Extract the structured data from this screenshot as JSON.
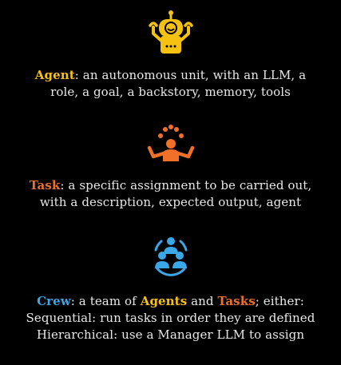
{
  "colors": {
    "agent": "#f5c211",
    "task": "#f0702a",
    "crew": "#3aa8e8",
    "text": "#e8e8e8",
    "background": "#000000"
  },
  "agent": {
    "icon": "robot-icon",
    "term": "Agent",
    "line1_rest": ": an autonomous unit, with an LLM, a",
    "line2": "role, a goal, a backstory, memory, tools"
  },
  "task": {
    "icon": "juggler-icon",
    "term": "Task",
    "line1_rest": ": a specific assignment to be carried out,",
    "line2": "with a description, expected output, agent"
  },
  "crew": {
    "icon": "team-icon",
    "term": "Crew",
    "line1_mid1": ": a team of ",
    "agents_word": "Agents",
    "line1_mid2": " and ",
    "tasks_word": "Tasks",
    "line1_end": "; either:",
    "line2": "Sequential: run tasks in order they are defined",
    "line3": "Hierarchical: use a Manager LLM to assign"
  }
}
